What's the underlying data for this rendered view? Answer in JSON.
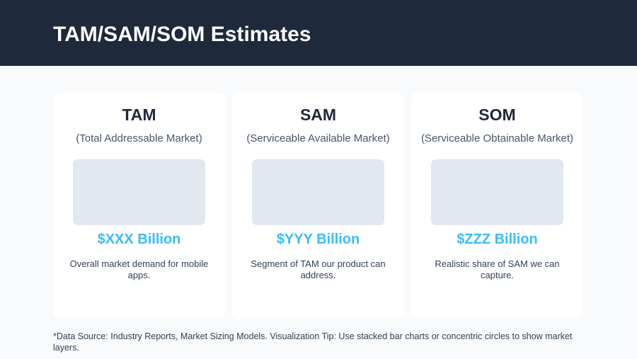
{
  "header": {
    "title": "TAM/SAM/SOM Estimates"
  },
  "colors": {
    "header_bg": "#1e293b",
    "accent": "#38bdf8",
    "placeholder": "#e2e8f0"
  },
  "cards": [
    {
      "title": "TAM",
      "subtitle": "(Total Addressable Market)",
      "value": "$XXX Billion",
      "description": "Overall market demand for mobile apps."
    },
    {
      "title": "SAM",
      "subtitle": "(Serviceable Available Market)",
      "value": "$YYY Billion",
      "description": "Segment of TAM our product can address."
    },
    {
      "title": "SOM",
      "subtitle": "(Serviceable Obtainable Market)",
      "value": "$ZZZ Billion",
      "description": "Realistic share of SAM we can capture."
    }
  ],
  "footnote": "*Data Source: Industry Reports, Market Sizing Models. Visualization Tip: Use stacked bar charts or concentric circles to show market layers."
}
